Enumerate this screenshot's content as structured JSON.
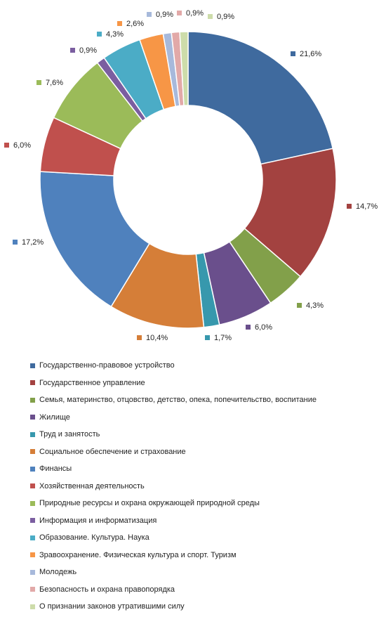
{
  "chart_data": {
    "type": "pie",
    "title": "",
    "legend_position": "bottom",
    "categories": [
      "Государственно-правовое устройство",
      "Государственное управление",
      "Семья,  материнство, отцовство, детство,  опека, попечительство,  воспитание",
      "Жилище",
      "Труд и занятость",
      "Социальное обеспечение  и страхование",
      "Финансы",
      "Хозяйственная деятельность",
      "Природные  ресурсы и охрана окружающей природной среды",
      "Информация и информатизация",
      "Образование. Культура. Наука",
      "Зравоохранение. Физическая культура и спорт. Туризм",
      "Молодежь",
      "Безопасность и охрана правопорядка",
      "О признании законов утратившими силу"
    ],
    "values": [
      21.6,
      14.7,
      4.3,
      6.0,
      1.7,
      10.4,
      17.2,
      6.0,
      7.6,
      0.9,
      4.3,
      2.6,
      0.9,
      0.9,
      0.9
    ],
    "labels": [
      "21,6%",
      "14,7%",
      "4,3%",
      "6,0%",
      "1,7%",
      "10,4%",
      "17,2%",
      "6,0%",
      "7,6%",
      "0,9%",
      "4,3%",
      "2,6%",
      "0,9%",
      "0,9%",
      "0,9%"
    ],
    "colors": [
      "#3f6a9e",
      "#a34240",
      "#82a04a",
      "#6a4f8c",
      "#3798ad",
      "#d57e38",
      "#4f81bd",
      "#c0504d",
      "#9bbb59",
      "#7b5ea0",
      "#4bacc6",
      "#f79646",
      "#a7b9db",
      "#e2a9a8",
      "#cddcaa"
    ]
  }
}
